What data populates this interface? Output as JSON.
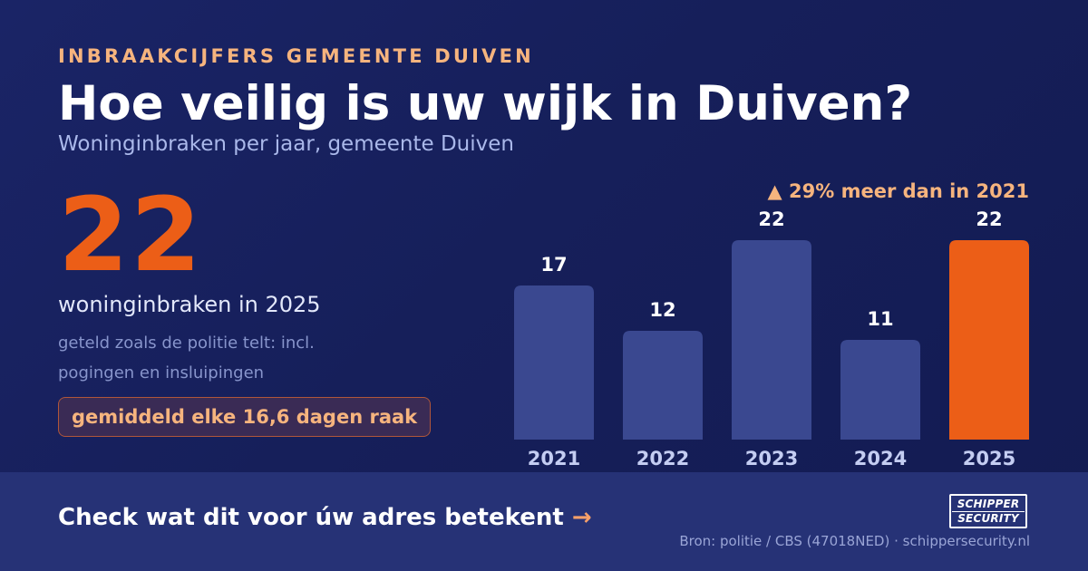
{
  "header": {
    "kicker": "INBRAAKCIJFERS GEMEENTE DUIVEN",
    "title": "Hoe veilig is uw wijk in Duiven?",
    "subtitle": "Woninginbraken per jaar, gemeente Duiven"
  },
  "stat": {
    "value": "22",
    "label": "woninginbraken in 2025",
    "note": "geteld zoals de politie telt: incl. pogingen en insluipingen",
    "badge": "gemiddeld elke 16,6 dagen raak"
  },
  "chart_data": {
    "type": "bar",
    "categories": [
      "2021",
      "2022",
      "2023",
      "2024",
      "2025"
    ],
    "values": [
      17,
      12,
      22,
      11,
      22
    ],
    "highlight_index": 4,
    "annotation": "▲ 29% meer dan in 2021",
    "title": "",
    "xlabel": "",
    "ylabel": "",
    "grid": false,
    "colors": {
      "bar": "#3a4890",
      "highlight": "#ec5e17",
      "label": "#ffffff",
      "tick": "#c4cdf2",
      "annotation": "#f6b47e"
    }
  },
  "footer": {
    "cta": "Check wat dit voor úw adres betekent",
    "cta_arrow": "→",
    "logo_line1": "SCHIPPER",
    "logo_line2": "SECURITY",
    "source": "Bron: politie / CBS (47018NED) · schippersecurity.nl"
  }
}
